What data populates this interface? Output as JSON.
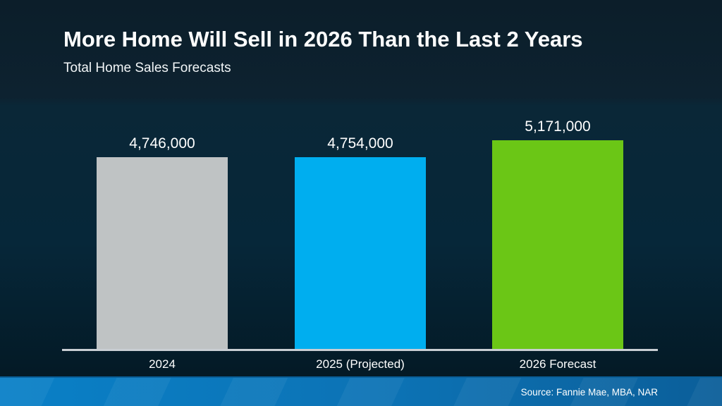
{
  "slide": {
    "title": "More Home Will Sell in 2026 Than the Last 2 Years",
    "subtitle": "Total Home Sales Forecasts",
    "source": "Source: Fannie Mae, MBA, NAR"
  },
  "colors": {
    "background_top": "#0c1e2a",
    "background_bottom": "#03151f",
    "axis_line": "#c9ced3",
    "footer_gradient_left": "#0a80c7",
    "footer_gradient_right": "#0b5e99",
    "text": "#ffffff"
  },
  "chart_data": {
    "type": "bar",
    "title": "More Home Will Sell in 2026 Than the Last 2 Years",
    "subtitle": "Total Home Sales Forecasts",
    "categories": [
      "2024",
      "2025 (Projected)",
      "2026 Forecast"
    ],
    "values": [
      4746000,
      4754000,
      5171000
    ],
    "value_labels": [
      "4,746,000",
      "4,754,000",
      "5,171,000"
    ],
    "bar_colors": [
      "#bfc3c4",
      "#00aeef",
      "#6bc616"
    ],
    "ylim": [
      0,
      5171000
    ],
    "grid": false,
    "legend": "none",
    "xlabel": "",
    "ylabel": "",
    "annotations": [
      "Source: Fannie Mae, MBA, NAR"
    ]
  }
}
